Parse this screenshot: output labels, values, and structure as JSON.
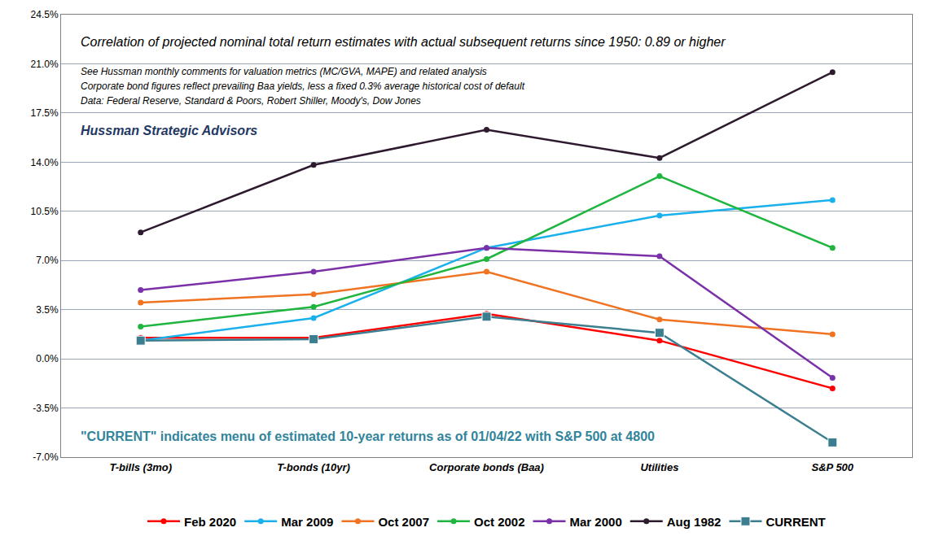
{
  "chart_data": {
    "type": "line",
    "annotations": [
      "Correlation of projected nominal total return estimates with actual subsequent returns since 1950: 0.89 or higher",
      "See Hussman monthly comments for valuation metrics (MC/GVA, MAPE) and related analysis",
      "Corporate bond figures reflect prevailing Baa yields, less a fixed 0.3% average historical cost of default",
      "Data: Federal Reserve, Standard & Poors, Robert Shiller, Moody's, Dow Jones",
      "Hussman Strategic Advisors",
      "\"CURRENT\" indicates menu of estimated 10-year returns as of 01/04/22 with S&P 500 at 4800"
    ],
    "categories": [
      "T-bills (3mo)",
      "T-bonds (10yr)",
      "Corporate bonds (Baa)",
      "Utilities",
      "S&P 500"
    ],
    "series": [
      {
        "name": "Feb 2020",
        "color": "#ff0000",
        "marker": "circle",
        "values": [
          1.5,
          1.5,
          3.2,
          1.3,
          -2.1
        ]
      },
      {
        "name": "Mar 2009",
        "color": "#1ab0ec",
        "marker": "circle",
        "values": [
          1.3,
          2.9,
          7.9,
          10.2,
          11.3
        ]
      },
      {
        "name": "Oct 2007",
        "color": "#f07322",
        "marker": "circle",
        "values": [
          4.0,
          4.6,
          6.2,
          2.8,
          1.75
        ]
      },
      {
        "name": "Oct 2002",
        "color": "#1fb53f",
        "marker": "circle",
        "values": [
          2.3,
          3.7,
          7.1,
          13.0,
          7.9
        ]
      },
      {
        "name": "Mar 2000",
        "color": "#7a30a8",
        "marker": "circle",
        "values": [
          4.9,
          6.2,
          7.9,
          7.3,
          -1.35
        ]
      },
      {
        "name": "Aug 1982",
        "color": "#2e1a2e",
        "marker": "circle",
        "values": [
          9.0,
          13.8,
          16.3,
          14.3,
          20.4
        ]
      },
      {
        "name": "CURRENT",
        "color": "#3b7e8f",
        "marker": "square",
        "values": [
          1.3,
          1.4,
          3.0,
          1.85,
          -5.95
        ]
      }
    ],
    "ylim": [
      -7.0,
      24.5
    ],
    "yticks": [
      {
        "value": -7.0,
        "label": "-7.0%"
      },
      {
        "value": -3.5,
        "label": "-3.5%"
      },
      {
        "value": 0.0,
        "label": "0.0%"
      },
      {
        "value": 3.5,
        "label": "3.5%"
      },
      {
        "value": 7.0,
        "label": "7.0%"
      },
      {
        "value": 10.5,
        "label": "10.5%"
      },
      {
        "value": 14.0,
        "label": "14.0%"
      },
      {
        "value": 17.5,
        "label": "17.5%"
      },
      {
        "value": 21.0,
        "label": "21.0%"
      },
      {
        "value": 24.5,
        "label": "24.5%"
      }
    ],
    "grid": true,
    "legend": "bottom"
  }
}
